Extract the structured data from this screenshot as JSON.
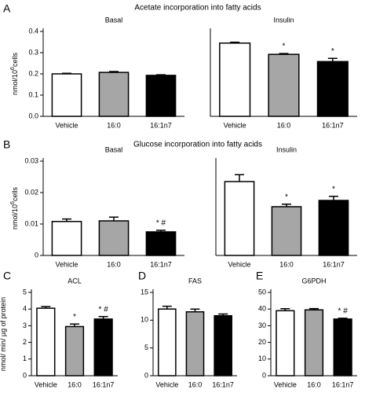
{
  "chart_data": [
    {
      "type": "bar",
      "panel": "A",
      "title": "Acetate incorporation into fatty acids",
      "subtitle": "Basal",
      "ylabel": {
        "text": "nmol/10",
        "sup": "6",
        "tail": "cells"
      },
      "categories": [
        "Vehicle",
        "16:0",
        "16:1n7"
      ],
      "values": [
        0.2,
        0.207,
        0.193
      ],
      "errors": [
        0.003,
        0.004,
        0.003
      ],
      "colors": [
        "#ffffff",
        "#a6a6a6",
        "#000000"
      ],
      "annotations": [
        null,
        null,
        null
      ],
      "ylim": [
        0,
        0.4
      ],
      "yticks": [
        {
          "value": 0,
          "label": "0.0"
        },
        0.1,
        0.2,
        0.3,
        0.4
      ]
    },
    {
      "type": "bar",
      "subtitle": "Insulin",
      "categories": [
        "Vehicle",
        "16:0",
        "16:1n7"
      ],
      "values": [
        0.345,
        0.292,
        0.258
      ],
      "errors": [
        0.004,
        0.004,
        0.015
      ],
      "colors": [
        "#ffffff",
        "#a6a6a6",
        "#000000"
      ],
      "annotations": [
        null,
        "*",
        "*"
      ],
      "ylim": [
        0,
        0.4
      ]
    },
    {
      "type": "bar",
      "panel": "B",
      "title": "Glucose incorporation into fatty acids",
      "subtitle": "Basal",
      "ylabel": {
        "text": "nmol/10",
        "sup": "6",
        "tail": "cells"
      },
      "categories": [
        "Vehicle",
        "16:0",
        "16:1n7"
      ],
      "values": [
        0.0108,
        0.011,
        0.0075
      ],
      "errors": [
        0.0008,
        0.0012,
        0.0005
      ],
      "colors": [
        "#ffffff",
        "#a6a6a6",
        "#000000"
      ],
      "annotations": [
        null,
        null,
        "* #"
      ],
      "ylim": [
        0,
        0.03
      ],
      "yticks": [
        0,
        0.01,
        0.02,
        0.03
      ]
    },
    {
      "type": "bar",
      "subtitle": "Insulin",
      "categories": [
        "Vehicle",
        "16:0",
        "16:1n7"
      ],
      "values": [
        0.0235,
        0.0155,
        0.0175
      ],
      "errors": [
        0.0022,
        0.0008,
        0.0013
      ],
      "colors": [
        "#ffffff",
        "#a6a6a6",
        "#000000"
      ],
      "annotations": [
        null,
        "*",
        "*"
      ],
      "ylim": [
        0,
        0.03
      ]
    },
    {
      "type": "bar",
      "panel": "C",
      "subtitle": "ACL",
      "ylabel": {
        "text": "nmol/ min/ µg of protein"
      },
      "categories": [
        "Vehicle",
        "16:0",
        "16:1n7"
      ],
      "values": [
        4.05,
        2.95,
        3.4
      ],
      "errors": [
        0.1,
        0.15,
        0.15
      ],
      "colors": [
        "#ffffff",
        "#a6a6a6",
        "#000000"
      ],
      "annotations": [
        null,
        "*",
        "* #"
      ],
      "ylim": [
        0,
        5
      ],
      "yticks": [
        0,
        1,
        2,
        3,
        4,
        5
      ]
    },
    {
      "type": "bar",
      "panel": "D",
      "subtitle": "FAS",
      "categories": [
        "Vehicle",
        "16:0",
        "16:1n7"
      ],
      "values": [
        12,
        11.5,
        10.8
      ],
      "errors": [
        0.5,
        0.5,
        0.3
      ],
      "colors": [
        "#ffffff",
        "#a6a6a6",
        "#000000"
      ],
      "annotations": [
        null,
        null,
        null
      ],
      "ylim": [
        0,
        15
      ],
      "yticks": [
        0,
        5,
        10,
        15
      ]
    },
    {
      "type": "bar",
      "panel": "E",
      "subtitle": "G6PDH",
      "categories": [
        "Vehicle",
        "16:0",
        "16:1n7"
      ],
      "values": [
        39,
        39.5,
        34
      ],
      "errors": [
        1.2,
        0.8,
        0.5
      ],
      "colors": [
        "#ffffff",
        "#a6a6a6",
        "#000000"
      ],
      "annotations": [
        null,
        null,
        "* #"
      ],
      "ylim": [
        0,
        50
      ],
      "yticks": [
        0,
        10,
        20,
        30,
        40,
        50
      ]
    }
  ]
}
